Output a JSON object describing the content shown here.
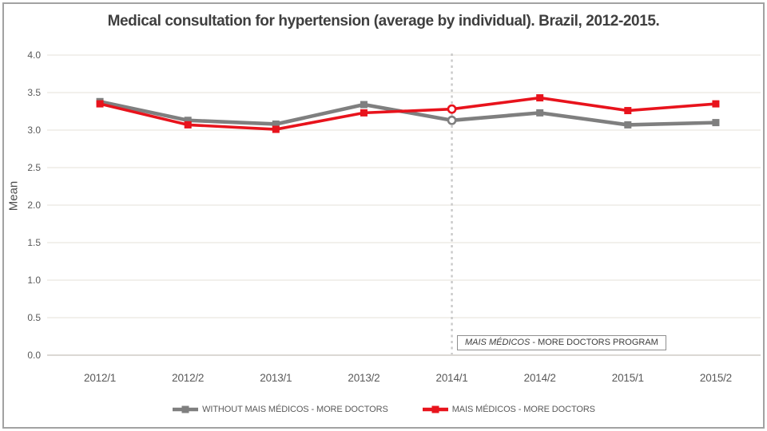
{
  "chart_data": {
    "type": "line",
    "title": "Medical consultation for hypertension (average by individual). Brazil, 2012-2015.",
    "xlabel": "",
    "ylabel": "Mean",
    "ylim": [
      0.0,
      4.0
    ],
    "ytick_step": 0.5,
    "yticks": [
      "4.0",
      "3.5",
      "3.0",
      "2.5",
      "2.0",
      "1.5",
      "1.0",
      "0.5",
      "0.0"
    ],
    "categories": [
      "2012/1",
      "2012/2",
      "2013/1",
      "2013/2",
      "2014/1",
      "2014/2",
      "2015/1",
      "2015/2"
    ],
    "series": [
      {
        "name": "WITHOUT MAIS MÉDICOS - MORE DOCTORS",
        "color": "#7f7f7f",
        "values": [
          3.38,
          3.13,
          3.08,
          3.34,
          3.13,
          3.23,
          3.07,
          3.1
        ]
      },
      {
        "name": "MAIS MÉDICOS - MORE DOCTORS",
        "color": "#e8131c",
        "values": [
          3.35,
          3.07,
          3.01,
          3.23,
          3.28,
          3.43,
          3.26,
          3.35
        ]
      }
    ],
    "highlight_index": 4,
    "vline_category": "2014/1",
    "grid": "horizontal-on",
    "grid_color": "#edebe5",
    "axis_color": "#cfccc6",
    "vline_color": "#c9c9c9",
    "legend_position": "bottom",
    "annotation": {
      "italic": "MAIS MÉDICOS",
      "rest": " - MORE DOCTORS PROGRAM"
    }
  }
}
